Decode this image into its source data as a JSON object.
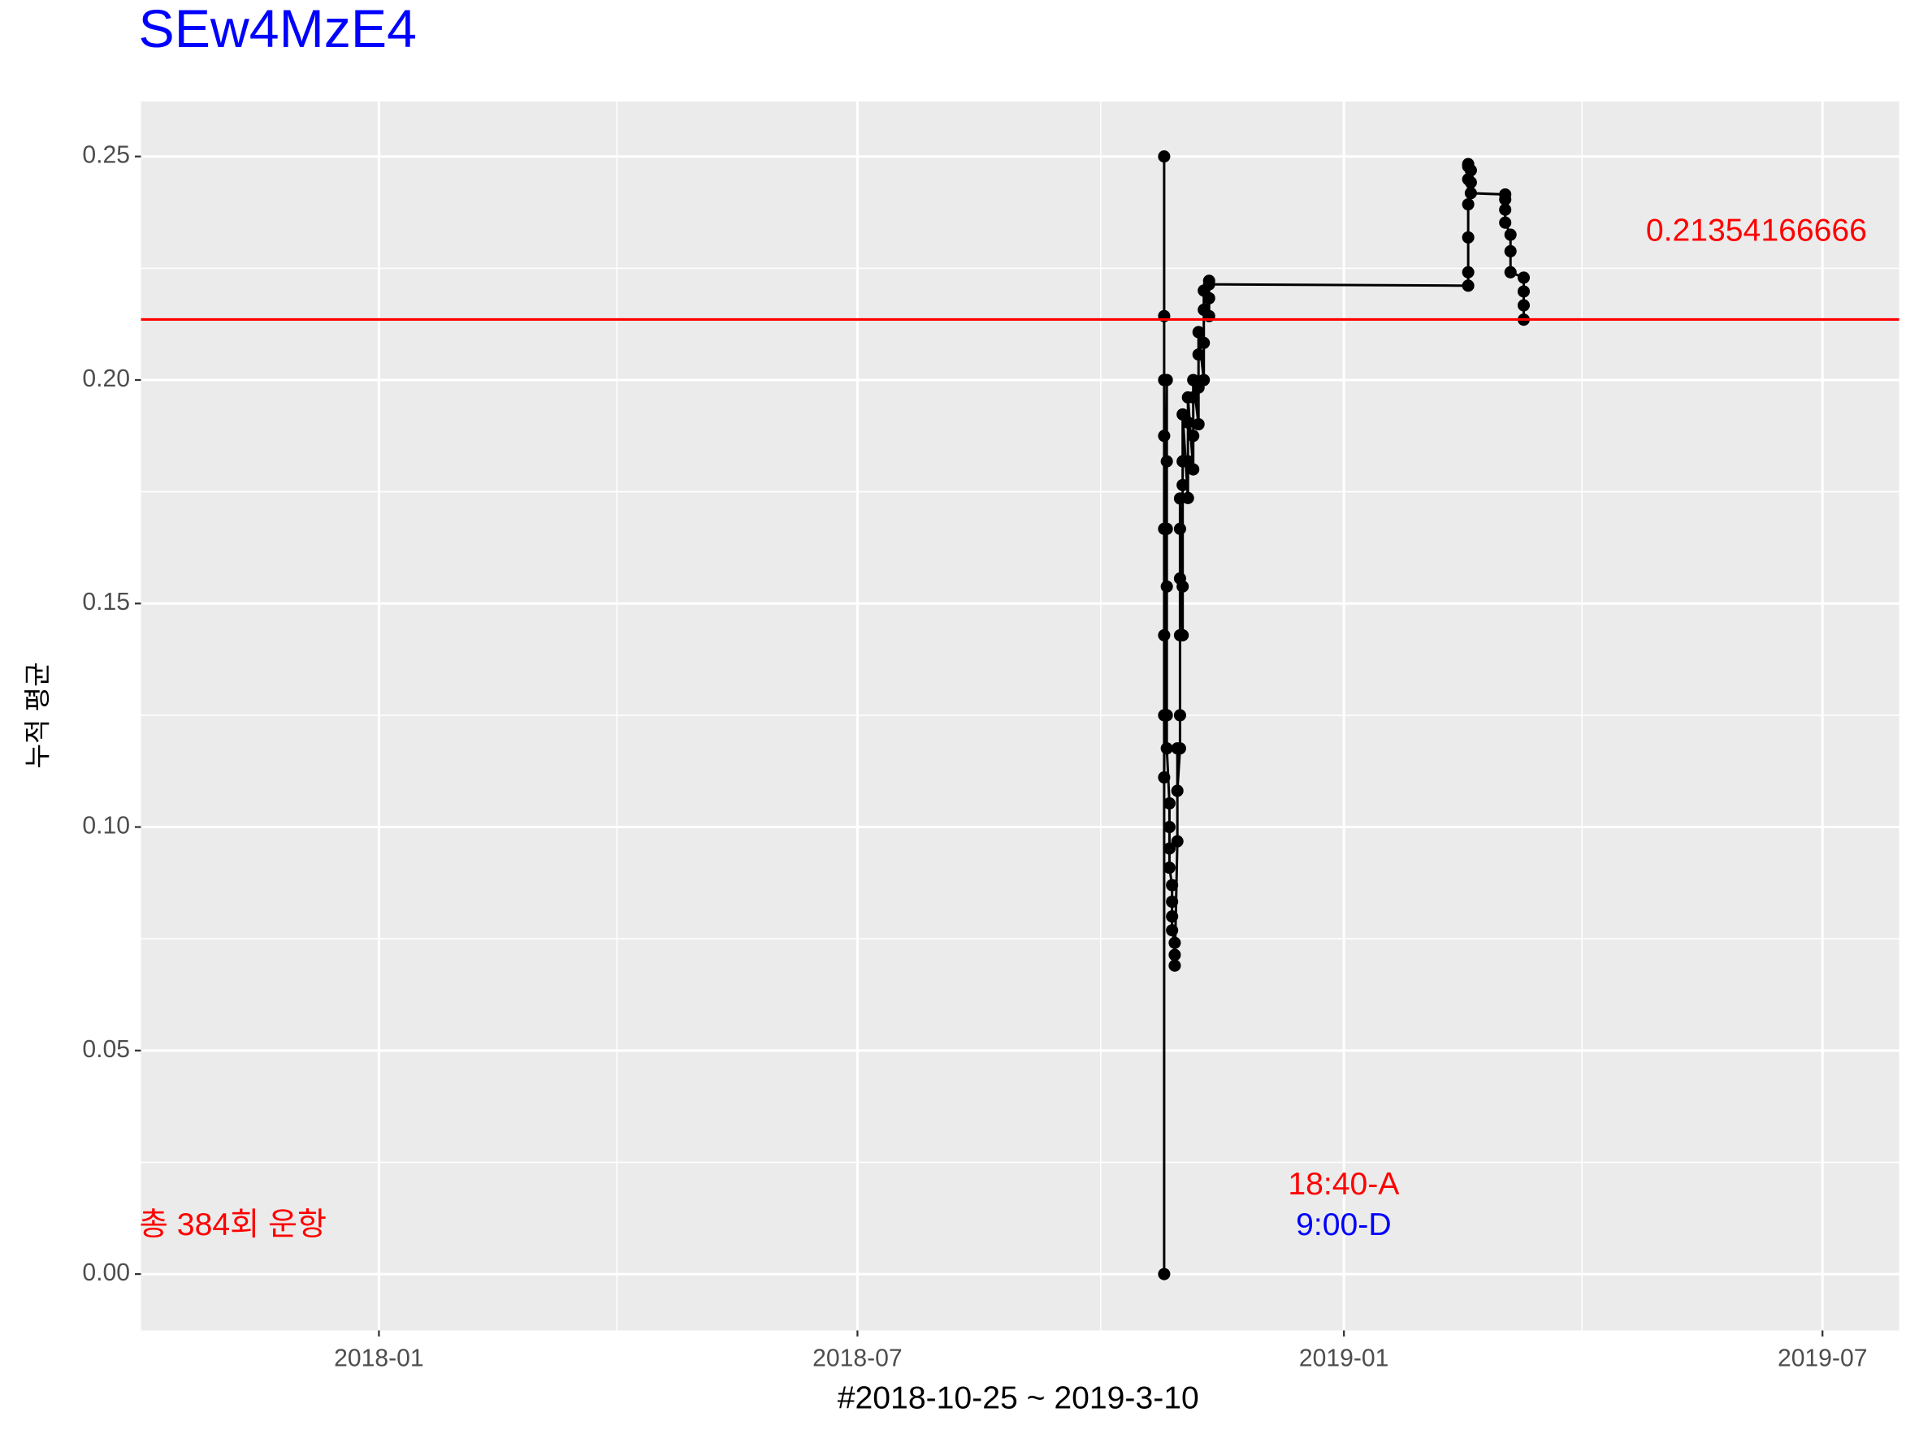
{
  "chart_data": {
    "type": "line",
    "title": "SEw4MzE4",
    "title_color": "#0000ff",
    "x_label": "#2018-10-25 ~ 2019-3-10",
    "y_label": "누적 평균",
    "xlim": [
      "2017-10-03",
      "2019-07-30"
    ],
    "xticks": [
      {
        "value": "2018-01-01",
        "label": "2018-01"
      },
      {
        "value": "2018-07-01",
        "label": "2018-07"
      },
      {
        "value": "2019-01-01",
        "label": "2019-01"
      },
      {
        "value": "2019-07-01",
        "label": "2019-07"
      }
    ],
    "xminorticks": [
      "2017-10-01",
      "2018-04-01",
      "2018-10-01",
      "2019-04-01"
    ],
    "ylim": [
      -0.0126,
      0.2623
    ],
    "yticks": [
      {
        "value": 0,
        "label": "0.00"
      },
      {
        "value": 0.05,
        "label": "0.05"
      },
      {
        "value": 0.1,
        "label": "0.10"
      },
      {
        "value": 0.15,
        "label": "0.15"
      },
      {
        "value": 0.2,
        "label": "0.20"
      },
      {
        "value": 0.25,
        "label": "0.25"
      }
    ],
    "yminorticks": [
      0.025,
      0.075,
      0.125,
      0.175,
      0.225
    ],
    "grid": true,
    "series": [
      {
        "color": "#000000",
        "x": [
          "2018-10-25",
          "2018-10-25",
          "2018-10-25",
          "2018-10-25",
          "2018-10-25",
          "2018-10-25",
          "2018-10-25",
          "2018-10-25",
          "2018-10-25",
          "2018-10-26",
          "2018-10-26",
          "2018-10-26",
          "2018-10-26",
          "2018-10-26",
          "2018-10-26",
          "2018-10-27",
          "2018-10-27",
          "2018-10-27",
          "2018-10-27",
          "2018-10-28",
          "2018-10-28",
          "2018-10-28",
          "2018-10-28",
          "2018-10-29",
          "2018-10-29",
          "2018-10-29",
          "2018-10-30",
          "2018-10-30",
          "2018-10-30",
          "2018-10-31",
          "2018-10-31",
          "2018-10-31",
          "2018-10-31",
          "2018-10-31",
          "2018-10-31",
          "2018-11-01",
          "2018-11-01",
          "2018-11-01",
          "2018-11-01",
          "2018-11-01",
          "2018-11-03",
          "2018-11-03",
          "2018-11-03",
          "2018-11-03",
          "2018-11-05",
          "2018-11-05",
          "2018-11-05",
          "2018-11-05",
          "2018-11-07",
          "2018-11-07",
          "2018-11-07",
          "2018-11-07",
          "2018-11-09",
          "2018-11-09",
          "2018-11-09",
          "2018-11-09",
          "2018-11-11",
          "2018-11-11",
          "2018-11-11",
          "2018-11-11",
          "2019-02-17",
          "2019-02-17",
          "2019-02-17",
          "2019-02-17",
          "2019-02-17",
          "2019-02-17",
          "2019-02-17",
          "2019-02-18",
          "2019-02-18",
          "2019-02-18",
          "2019-03-03",
          "2019-03-03",
          "2019-03-03",
          "2019-03-03",
          "2019-03-05",
          "2019-03-05",
          "2019-03-05",
          "2019-03-10",
          "2019-03-10",
          "2019-03-10",
          "2019-03-10"
        ],
        "values": [
          0,
          0.25,
          0.1667,
          0.125,
          0.2,
          0.1429,
          0.1875,
          0.2143,
          0.1111,
          0.2,
          0.1818,
          0.1538,
          0.1667,
          0.125,
          0.1176,
          0.1053,
          0.1,
          0.0952,
          0.0909,
          0.087,
          0.0833,
          0.08,
          0.0769,
          0.0741,
          0.0714,
          0.069,
          0.0968,
          0.1176,
          0.1081,
          0.1176,
          0.125,
          0.1429,
          0.1556,
          0.1667,
          0.1735,
          0.1429,
          0.1538,
          0.1765,
          0.1818,
          0.1923,
          0.1736,
          0.1818,
          0.1905,
          0.1961,
          0.18,
          0.1875,
          0.1961,
          0.2,
          0.1901,
          0.1983,
          0.2057,
          0.2107,
          0.2,
          0.2083,
          0.2157,
          0.22,
          0.2143,
          0.2183,
          0.2222,
          0.2214,
          0.2211,
          0.2241,
          0.2319,
          0.2393,
          0.2449,
          0.2483,
          0.2478,
          0.2469,
          0.2442,
          0.2418,
          0.2415,
          0.2404,
          0.2381,
          0.2352,
          0.2325,
          0.2288,
          0.2241,
          0.2229,
          0.2198,
          0.2167,
          0.2135
        ]
      }
    ],
    "hline": 0.21354166666,
    "hline_color": "#ff0000",
    "annotations": [
      {
        "text": "총 384회 운항",
        "color": "#ff0000"
      },
      {
        "text": "18:40-A",
        "color": "#ff0000"
      },
      {
        "text": "9:00-D",
        "color": "#0000ff"
      }
    ]
  }
}
